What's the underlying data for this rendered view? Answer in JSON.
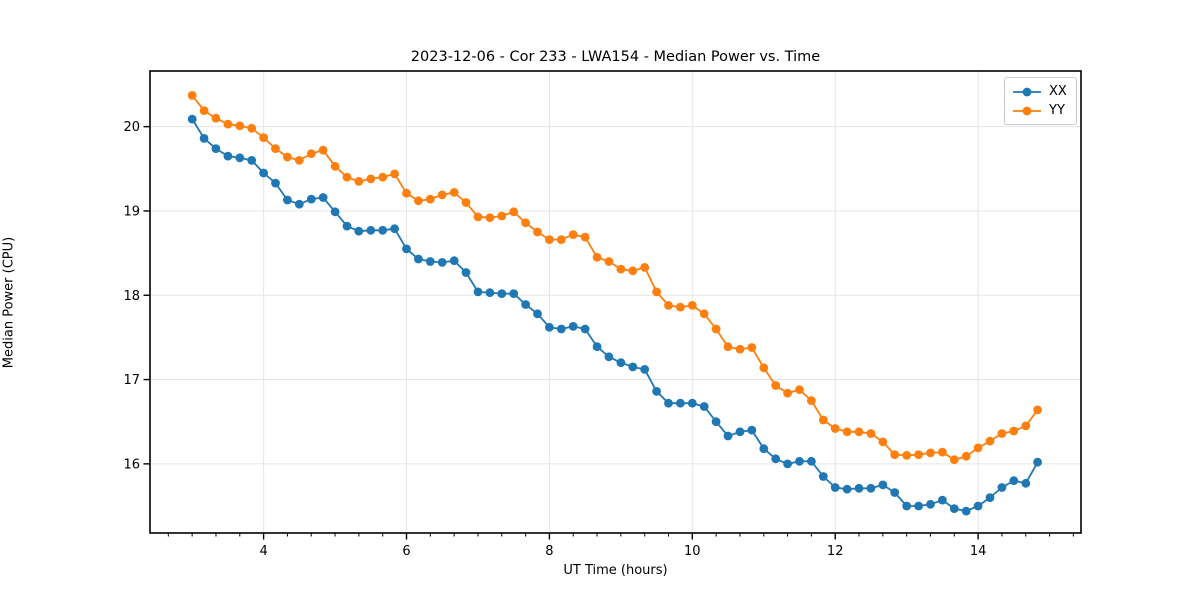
{
  "chart_data": {
    "type": "line",
    "title": "2023-12-06 - Cor 233 - LWA154 - Median Power vs. Time",
    "xlabel": "UT Time (hours)",
    "ylabel": "Median Power (CPU)",
    "xlim": [
      2.41,
      15.44
    ],
    "ylim": [
      15.18,
      20.66
    ],
    "xticks": [
      4,
      6,
      8,
      10,
      12,
      14
    ],
    "yticks": [
      16,
      17,
      18,
      19,
      20
    ],
    "x_minor_step": 0.33333,
    "grid": true,
    "grid_color": "#e5e5e5",
    "legend_position": "upper right",
    "x": [
      3.0,
      3.167,
      3.333,
      3.5,
      3.667,
      3.833,
      4.0,
      4.167,
      4.333,
      4.5,
      4.667,
      4.833,
      5.0,
      5.167,
      5.333,
      5.5,
      5.667,
      5.833,
      6.0,
      6.167,
      6.333,
      6.5,
      6.667,
      6.833,
      7.0,
      7.167,
      7.333,
      7.5,
      7.667,
      7.833,
      8.0,
      8.167,
      8.333,
      8.5,
      8.667,
      8.833,
      9.0,
      9.167,
      9.333,
      9.5,
      9.667,
      9.833,
      10.0,
      10.167,
      10.333,
      10.5,
      10.667,
      10.833,
      11.0,
      11.167,
      11.333,
      11.5,
      11.667,
      11.833,
      12.0,
      12.167,
      12.333,
      12.5,
      12.667,
      12.833,
      13.0,
      13.167,
      13.333,
      13.5,
      13.667,
      13.833,
      14.0,
      14.167,
      14.333,
      14.5,
      14.667,
      14.833
    ],
    "series": [
      {
        "name": "XX",
        "color": "#1f77b4",
        "values": [
          20.09,
          19.86,
          19.74,
          19.65,
          19.63,
          19.6,
          19.45,
          19.33,
          19.13,
          19.08,
          19.14,
          19.16,
          18.99,
          18.82,
          18.76,
          18.77,
          18.77,
          18.79,
          18.55,
          18.43,
          18.4,
          18.39,
          18.41,
          18.27,
          18.04,
          18.03,
          18.02,
          18.02,
          17.89,
          17.78,
          17.62,
          17.6,
          17.63,
          17.6,
          17.39,
          17.27,
          17.2,
          17.15,
          17.12,
          16.86,
          16.72,
          16.72,
          16.72,
          16.68,
          16.5,
          16.33,
          16.38,
          16.4,
          16.18,
          16.06,
          16.0,
          16.03,
          16.03,
          15.85,
          15.72,
          15.7,
          15.71,
          15.71,
          15.75,
          15.66,
          15.5,
          15.5,
          15.52,
          15.57,
          15.47,
          15.44,
          15.5,
          15.6,
          15.72,
          15.8,
          15.77,
          16.02
        ]
      },
      {
        "name": "YY",
        "color": "#ff7f0e",
        "values": [
          20.37,
          20.19,
          20.1,
          20.03,
          20.01,
          19.98,
          19.87,
          19.74,
          19.64,
          19.6,
          19.68,
          19.72,
          19.53,
          19.4,
          19.35,
          19.38,
          19.4,
          19.44,
          19.21,
          19.12,
          19.14,
          19.19,
          19.22,
          19.1,
          18.93,
          18.92,
          18.94,
          18.99,
          18.86,
          18.75,
          18.66,
          18.66,
          18.72,
          18.69,
          18.45,
          18.4,
          18.31,
          18.29,
          18.33,
          18.04,
          17.88,
          17.86,
          17.88,
          17.78,
          17.6,
          17.39,
          17.36,
          17.38,
          17.14,
          16.93,
          16.84,
          16.88,
          16.75,
          16.52,
          16.42,
          16.38,
          16.38,
          16.36,
          16.26,
          16.11,
          16.1,
          16.11,
          16.13,
          16.14,
          16.05,
          16.09,
          16.19,
          16.27,
          16.36,
          16.39,
          16.45,
          16.64
        ]
      }
    ]
  }
}
